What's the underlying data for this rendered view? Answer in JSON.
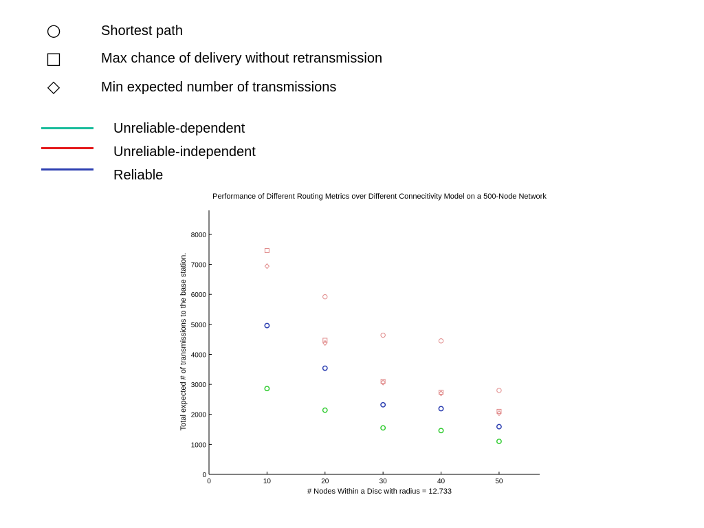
{
  "legend_shapes": [
    {
      "symbol": "○",
      "icon": "circle-icon",
      "label": "Shortest path"
    },
    {
      "symbol": "□",
      "icon": "square-icon",
      "label": "Max chance of delivery without retransmission"
    },
    {
      "symbol": "◇",
      "icon": "diamond-icon",
      "label": "Min expected number of transmissions"
    }
  ],
  "legend_lines": [
    {
      "color": "#1abc9c",
      "label": "Unreliable-dependent"
    },
    {
      "color": "#e41a1c",
      "label": "Unreliable-independent"
    },
    {
      "color": "#2c3fb1",
      "label": "Reliable"
    }
  ],
  "chart_data": {
    "type": "scatter",
    "title": "Performance of Different Routing Metrics over Different Connecitivity Model on a 500-Node Network",
    "xlabel": "# Nodes Within a Disc with radius = 12.733",
    "ylabel": "Total expected # of transmissions to the base station.",
    "xlim": [
      0,
      57
    ],
    "ylim": [
      0,
      8800
    ],
    "xticks": [
      0,
      10,
      20,
      30,
      40,
      50
    ],
    "yticks": [
      0,
      1000,
      2000,
      3000,
      4000,
      5000,
      6000,
      7000,
      8000
    ],
    "grid": false,
    "series": [
      {
        "marker": "circle",
        "color": "#e08888",
        "x": [
          20,
          30,
          40,
          50
        ],
        "y": [
          5920,
          4640,
          4450,
          2800
        ]
      },
      {
        "marker": "square",
        "color": "#e08888",
        "x": [
          10,
          20,
          30,
          40,
          50
        ],
        "y": [
          7460,
          4470,
          3100,
          2740,
          2100
        ]
      },
      {
        "marker": "diamond",
        "color": "#e08888",
        "x": [
          10,
          20,
          30,
          40,
          50
        ],
        "y": [
          6940,
          4380,
          3060,
          2700,
          2040
        ]
      },
      {
        "marker": "circle",
        "color": "#2c3fb1",
        "x": [
          10,
          20,
          30,
          40,
          50
        ],
        "y": [
          4960,
          3540,
          2320,
          2190,
          1590
        ]
      },
      {
        "marker": "circle",
        "color": "#33cc33",
        "x": [
          10,
          20,
          30,
          40,
          50
        ],
        "y": [
          2860,
          2140,
          1550,
          1460,
          1100
        ]
      }
    ]
  }
}
